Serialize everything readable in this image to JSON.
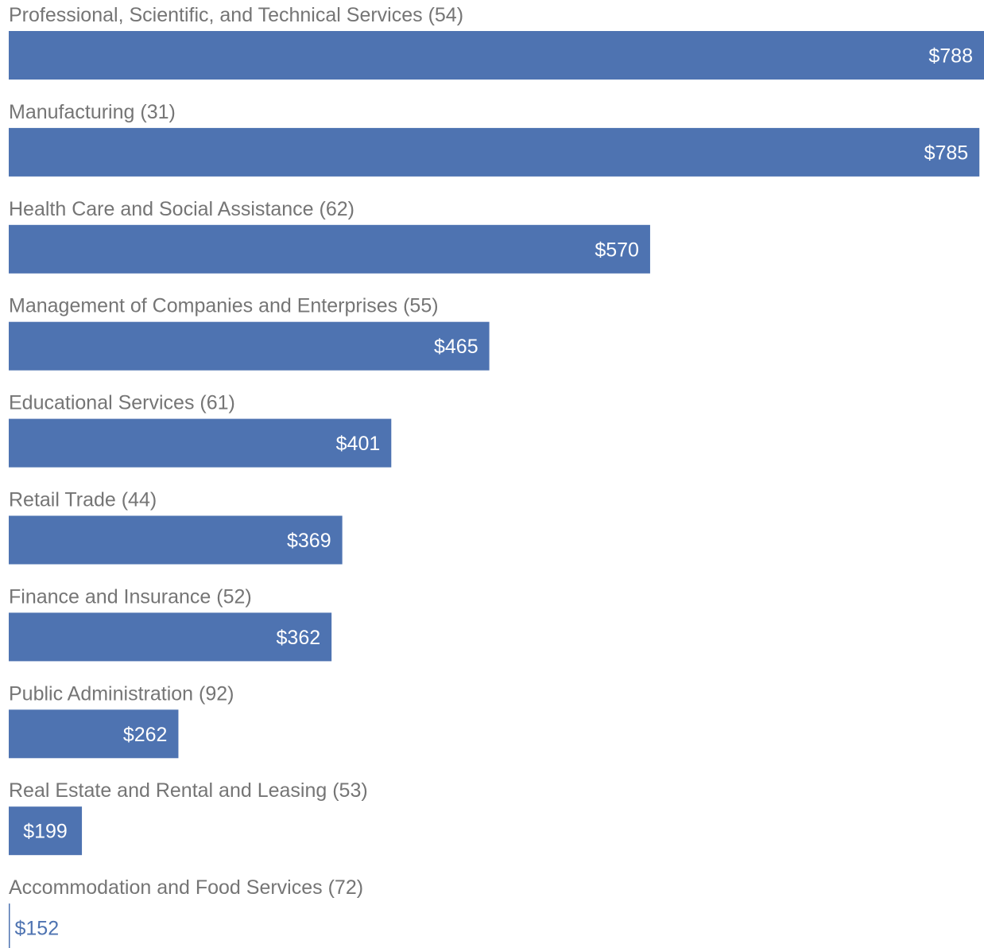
{
  "colors": {
    "bar": "#4e73b1",
    "category_text": "#757575",
    "value_text_inside": "#ffffff",
    "value_text_outside": "#4e73b1"
  },
  "chart_data": {
    "type": "bar",
    "orientation": "horizontal",
    "value_prefix": "$",
    "categories": [
      "Professional, Scientific, and Technical Services (54)",
      "Manufacturing (31)",
      "Health Care and Social Assistance (62)",
      "Management of Companies and Enterprises (55)",
      "Educational Services (61)",
      "Retail Trade (44)",
      "Finance and Insurance (52)",
      "Public Administration (92)",
      "Real Estate and Rental and Leasing (53)",
      "Accommodation and Food Services (72)"
    ],
    "values": [
      788,
      785,
      570,
      465,
      401,
      369,
      362,
      262,
      199,
      152
    ],
    "value_labels": [
      "$788",
      "$785",
      "$570",
      "$465",
      "$401",
      "$369",
      "$362",
      "$262",
      "$199",
      "$152"
    ],
    "xlim": [
      152,
      788
    ],
    "grid": false,
    "legend": "none"
  }
}
